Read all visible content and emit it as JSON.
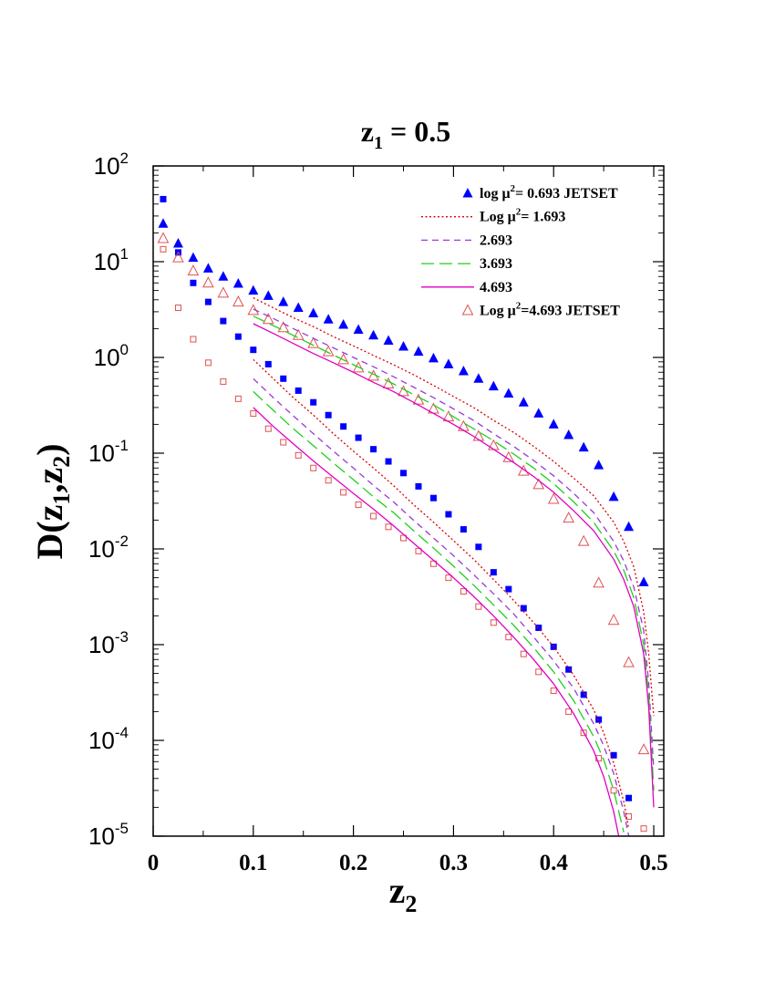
{
  "chart_data": {
    "type": "line",
    "title": {
      "base": "z",
      "sub": "1",
      "rest": " = 0.5"
    },
    "xlabel": {
      "base": "z",
      "sub": "2"
    },
    "ylabel": {
      "pre": "D(z",
      "sub1": "1",
      "mid": ",z",
      "sub2": "2",
      "post": ")"
    },
    "x_ticks": [
      "0",
      "0.1",
      "0.2",
      "0.3",
      "0.4",
      "0.5"
    ],
    "y_ticks": [
      {
        "base": "10",
        "exp": "2"
      },
      {
        "base": "10",
        "exp": "1"
      },
      {
        "base": "10",
        "exp": "0"
      },
      {
        "base": "10",
        "exp": "-1"
      },
      {
        "base": "10",
        "exp": "-2"
      },
      {
        "base": "10",
        "exp": "-3"
      },
      {
        "base": "10",
        "exp": "-4"
      },
      {
        "base": "10",
        "exp": "-5"
      }
    ],
    "xlim": [
      0,
      0.51
    ],
    "ylim": [
      1e-05,
      100
    ],
    "yscale": "log",
    "grid": false,
    "legend_position": "top-right",
    "legend": [
      {
        "marker": "filled-triangle",
        "color": "#0000ff",
        "pre": "log μ",
        "sup": "2",
        "post": "= 0.693 JETSET"
      },
      {
        "line": "dotted",
        "color": "#dd0000",
        "pre": "Log μ",
        "sup": "2",
        "post": "= 1.693"
      },
      {
        "line": "dashed-short",
        "color": "#9a3ad6",
        "pre": "2.693",
        "sup": "",
        "post": ""
      },
      {
        "line": "dashed-long",
        "color": "#1fcf1f",
        "pre": "3.693",
        "sup": "",
        "post": ""
      },
      {
        "line": "solid",
        "color": "#e000c0",
        "pre": "4.693",
        "sup": "",
        "post": ""
      },
      {
        "marker": "open-triangle",
        "color": "#e05050",
        "pre": "Log μ",
        "sup": "2",
        "post": "=4.693 JETSET"
      }
    ],
    "series": [
      {
        "style": "filled-triangle",
        "color": "#0000ff",
        "x": [
          0.01,
          0.025,
          0.04,
          0.055,
          0.07,
          0.085,
          0.1,
          0.115,
          0.13,
          0.145,
          0.16,
          0.175,
          0.19,
          0.205,
          0.22,
          0.235,
          0.25,
          0.265,
          0.28,
          0.295,
          0.31,
          0.325,
          0.34,
          0.355,
          0.37,
          0.385,
          0.4,
          0.415,
          0.43,
          0.445,
          0.46,
          0.475,
          0.49
        ],
        "y": [
          25,
          15.5,
          11,
          8.5,
          7,
          5.9,
          5,
          4.4,
          3.8,
          3.3,
          2.9,
          2.5,
          2.2,
          1.95,
          1.7,
          1.5,
          1.3,
          1.15,
          0.98,
          0.85,
          0.72,
          0.6,
          0.5,
          0.42,
          0.34,
          0.26,
          0.2,
          0.155,
          0.115,
          0.075,
          0.035,
          0.017,
          0.0045
        ]
      },
      {
        "style": "filled-square",
        "color": "#0000ff",
        "x": [
          0.01,
          0.025,
          0.04,
          0.055,
          0.07,
          0.085,
          0.1,
          0.115,
          0.13,
          0.145,
          0.16,
          0.175,
          0.19,
          0.205,
          0.22,
          0.235,
          0.25,
          0.265,
          0.28,
          0.295,
          0.31,
          0.325,
          0.34,
          0.355,
          0.37,
          0.385,
          0.4,
          0.415,
          0.43,
          0.445,
          0.46,
          0.475
        ],
        "y": [
          45,
          12.5,
          6,
          3.8,
          2.4,
          1.65,
          1.2,
          0.85,
          0.6,
          0.45,
          0.34,
          0.25,
          0.19,
          0.145,
          0.11,
          0.082,
          0.062,
          0.045,
          0.034,
          0.023,
          0.016,
          0.0105,
          0.0057,
          0.0038,
          0.0024,
          0.0015,
          0.00095,
          0.00055,
          0.0003,
          0.000165,
          7e-05,
          2.5e-05
        ]
      },
      {
        "style": "open-triangle",
        "color": "#e05050",
        "x": [
          0.01,
          0.025,
          0.04,
          0.055,
          0.07,
          0.085,
          0.1,
          0.115,
          0.13,
          0.145,
          0.16,
          0.175,
          0.19,
          0.205,
          0.22,
          0.235,
          0.25,
          0.265,
          0.28,
          0.295,
          0.31,
          0.325,
          0.34,
          0.355,
          0.37,
          0.385,
          0.4,
          0.415,
          0.43,
          0.445,
          0.46,
          0.475,
          0.49
        ],
        "y": [
          17.5,
          11,
          8,
          6,
          4.7,
          3.8,
          3.1,
          2.5,
          2.05,
          1.7,
          1.4,
          1.15,
          0.95,
          0.78,
          0.64,
          0.53,
          0.44,
          0.36,
          0.29,
          0.24,
          0.19,
          0.15,
          0.12,
          0.09,
          0.065,
          0.047,
          0.033,
          0.021,
          0.012,
          0.0044,
          0.0018,
          0.00065,
          8e-05
        ]
      },
      {
        "style": "open-square",
        "color": "#e05050",
        "x": [
          0.01,
          0.025,
          0.04,
          0.055,
          0.07,
          0.085,
          0.1,
          0.115,
          0.13,
          0.145,
          0.16,
          0.175,
          0.19,
          0.205,
          0.22,
          0.235,
          0.25,
          0.265,
          0.28,
          0.295,
          0.31,
          0.325,
          0.34,
          0.355,
          0.37,
          0.385,
          0.4,
          0.415,
          0.43,
          0.445,
          0.46,
          0.475,
          0.49
        ],
        "y": [
          13.5,
          3.3,
          1.55,
          0.88,
          0.56,
          0.37,
          0.26,
          0.18,
          0.13,
          0.095,
          0.07,
          0.052,
          0.039,
          0.029,
          0.022,
          0.017,
          0.013,
          0.0095,
          0.007,
          0.005,
          0.0036,
          0.0025,
          0.0017,
          0.0012,
          0.0008,
          0.00052,
          0.00033,
          0.0002,
          0.00012,
          6.5e-05,
          3e-05,
          1.6e-05,
          1.2e-05
        ]
      },
      {
        "style": "dotted",
        "color": "#dd0000",
        "x": [
          0.1,
          0.12,
          0.14,
          0.16,
          0.18,
          0.2,
          0.22,
          0.24,
          0.26,
          0.28,
          0.3,
          0.32,
          0.34,
          0.36,
          0.38,
          0.4,
          0.42,
          0.44,
          0.46,
          0.47,
          0.48,
          0.49,
          0.495,
          0.5
        ],
        "y": [
          4.2,
          3.3,
          2.6,
          2.1,
          1.65,
          1.32,
          1.05,
          0.84,
          0.66,
          0.51,
          0.39,
          0.3,
          0.22,
          0.165,
          0.118,
          0.082,
          0.055,
          0.036,
          0.019,
          0.012,
          0.0065,
          0.0022,
          0.0008,
          0.00018
        ]
      },
      {
        "style": "dashed-short",
        "color": "#9a3ad6",
        "x": [
          0.1,
          0.12,
          0.14,
          0.16,
          0.18,
          0.2,
          0.22,
          0.24,
          0.26,
          0.28,
          0.3,
          0.32,
          0.34,
          0.36,
          0.38,
          0.4,
          0.42,
          0.44,
          0.46,
          0.47,
          0.48,
          0.49,
          0.495,
          0.5
        ],
        "y": [
          3.2,
          2.55,
          2.0,
          1.58,
          1.26,
          1.0,
          0.8,
          0.63,
          0.49,
          0.38,
          0.29,
          0.22,
          0.16,
          0.118,
          0.084,
          0.058,
          0.038,
          0.024,
          0.012,
          0.0075,
          0.004,
          0.0014,
          0.0004,
          5e-05
        ]
      },
      {
        "style": "dashed-long",
        "color": "#1fcf1f",
        "x": [
          0.1,
          0.12,
          0.14,
          0.16,
          0.18,
          0.2,
          0.22,
          0.24,
          0.26,
          0.28,
          0.3,
          0.32,
          0.34,
          0.36,
          0.38,
          0.4,
          0.42,
          0.44,
          0.46,
          0.47,
          0.48,
          0.49,
          0.495,
          0.5
        ],
        "y": [
          2.7,
          2.15,
          1.7,
          1.34,
          1.06,
          0.84,
          0.67,
          0.53,
          0.41,
          0.32,
          0.24,
          0.18,
          0.135,
          0.098,
          0.07,
          0.048,
          0.031,
          0.019,
          0.0095,
          0.006,
          0.0031,
          0.001,
          0.0003,
          3e-05
        ]
      },
      {
        "style": "solid",
        "color": "#e000c0",
        "x": [
          0.1,
          0.12,
          0.14,
          0.16,
          0.18,
          0.2,
          0.22,
          0.24,
          0.26,
          0.28,
          0.3,
          0.32,
          0.34,
          0.36,
          0.38,
          0.4,
          0.42,
          0.44,
          0.46,
          0.47,
          0.48,
          0.49,
          0.495,
          0.5
        ],
        "y": [
          2.25,
          1.78,
          1.4,
          1.1,
          0.88,
          0.7,
          0.55,
          0.44,
          0.34,
          0.26,
          0.2,
          0.15,
          0.11,
          0.08,
          0.057,
          0.039,
          0.025,
          0.0155,
          0.0078,
          0.0048,
          0.0025,
          0.0008,
          0.00022,
          2e-05
        ]
      },
      {
        "style": "dotted",
        "color": "#dd0000",
        "x": [
          0.1,
          0.12,
          0.14,
          0.16,
          0.18,
          0.2,
          0.22,
          0.24,
          0.26,
          0.28,
          0.3,
          0.32,
          0.34,
          0.36,
          0.38,
          0.4,
          0.42,
          0.44,
          0.45,
          0.46,
          0.47,
          0.475
        ],
        "y": [
          0.95,
          0.6,
          0.38,
          0.25,
          0.16,
          0.105,
          0.07,
          0.046,
          0.029,
          0.019,
          0.0122,
          0.0078,
          0.0048,
          0.0029,
          0.0017,
          0.00095,
          0.00048,
          0.00021,
          0.00012,
          5.8e-05,
          2.3e-05,
          1.2e-05
        ]
      },
      {
        "style": "dashed-short",
        "color": "#9a3ad6",
        "x": [
          0.1,
          0.12,
          0.14,
          0.16,
          0.18,
          0.2,
          0.22,
          0.24,
          0.26,
          0.28,
          0.3,
          0.32,
          0.34,
          0.36,
          0.38,
          0.4,
          0.42,
          0.44,
          0.45,
          0.46,
          0.47,
          0.475
        ],
        "y": [
          0.6,
          0.38,
          0.245,
          0.16,
          0.105,
          0.07,
          0.046,
          0.031,
          0.02,
          0.013,
          0.0085,
          0.0054,
          0.0034,
          0.0021,
          0.0012,
          0.00068,
          0.00035,
          0.00015,
          8.8e-05,
          4.5e-05,
          1.8e-05,
          1e-05
        ]
      },
      {
        "style": "dashed-long",
        "color": "#1fcf1f",
        "x": [
          0.1,
          0.12,
          0.14,
          0.16,
          0.18,
          0.2,
          0.22,
          0.24,
          0.26,
          0.28,
          0.3,
          0.32,
          0.34,
          0.36,
          0.38,
          0.4,
          0.42,
          0.44,
          0.45,
          0.46,
          0.47
        ],
        "y": [
          0.44,
          0.28,
          0.18,
          0.12,
          0.079,
          0.053,
          0.035,
          0.024,
          0.0155,
          0.0102,
          0.0066,
          0.0042,
          0.0026,
          0.0016,
          0.00093,
          0.00052,
          0.00026,
          0.00011,
          6.3e-05,
          3e-05,
          1.1e-05
        ]
      },
      {
        "style": "solid",
        "color": "#e000c0",
        "x": [
          0.1,
          0.12,
          0.14,
          0.16,
          0.18,
          0.2,
          0.22,
          0.24,
          0.26,
          0.28,
          0.3,
          0.32,
          0.34,
          0.36,
          0.38,
          0.4,
          0.42,
          0.44,
          0.45,
          0.46,
          0.465
        ],
        "y": [
          0.3,
          0.19,
          0.125,
          0.083,
          0.056,
          0.038,
          0.026,
          0.0175,
          0.0115,
          0.0076,
          0.005,
          0.0032,
          0.002,
          0.0012,
          0.0007,
          0.00039,
          0.00019,
          7.8e-05,
          4.2e-05,
          1.8e-05,
          1e-05
        ]
      }
    ]
  }
}
